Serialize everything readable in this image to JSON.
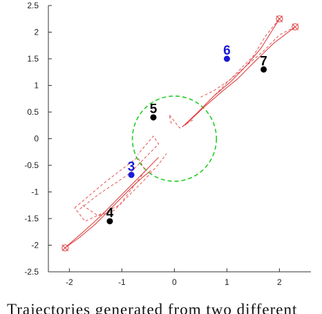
{
  "chart_data": {
    "type": "line",
    "title": "",
    "xlabel": "",
    "ylabel": "",
    "xlim": [
      -2.4,
      2.6
    ],
    "ylim": [
      -2.5,
      2.5
    ],
    "x_ticks": [
      -2,
      -1,
      0,
      1,
      2
    ],
    "x_tick_labels": [
      "-2",
      "-1",
      "0",
      "1",
      "2"
    ],
    "y_ticks": [
      2.5,
      2,
      1.5,
      1,
      0.5,
      0,
      -0.5,
      -1,
      -1.5,
      -2,
      -2.5
    ],
    "y_tick_labels": [
      "2.5",
      "2",
      "1.5",
      "1",
      "0.5",
      "0",
      "-0.5",
      "-1",
      "-1.5",
      "-2",
      "-2.5"
    ],
    "grid": false,
    "colors": {
      "trajectory": "#e04040",
      "circle": "#22cc22",
      "point_blue": "#1a1ad6",
      "point_black": "#000000",
      "axis": "#333333"
    },
    "circle": {
      "center": [
        0,
        0
      ],
      "radius": 0.8,
      "style": "dashed"
    },
    "points": [
      {
        "label": "3",
        "x": -0.82,
        "y": -0.68,
        "color": "blue"
      },
      {
        "label": "4",
        "x": -1.23,
        "y": -1.55,
        "color": "black"
      },
      {
        "label": "5",
        "x": -0.4,
        "y": 0.4,
        "color": "black"
      },
      {
        "label": "6",
        "x": 1.0,
        "y": 1.5,
        "color": "blue"
      },
      {
        "label": "7",
        "x": 1.7,
        "y": 1.3,
        "color": "black"
      }
    ],
    "markers": [
      {
        "x": -2.08,
        "y": -2.05
      },
      {
        "x": 2.0,
        "y": 2.25
      },
      {
        "x": 2.3,
        "y": 2.1
      }
    ],
    "series": [
      {
        "style": "solid",
        "x": [
          -2.08,
          -1.8,
          -1.5,
          -1.2,
          -1.0,
          -0.8,
          -0.6,
          -0.45
        ],
        "y": [
          -2.05,
          -1.85,
          -1.6,
          -1.3,
          -1.1,
          -0.9,
          -0.72,
          -0.6
        ]
      },
      {
        "style": "solid",
        "x": [
          -2.05,
          -1.7,
          -1.4,
          -1.15,
          -0.95,
          -0.75,
          -0.55,
          -0.3
        ],
        "y": [
          -2.02,
          -1.72,
          -1.45,
          -1.2,
          -1.0,
          -0.8,
          -0.6,
          -0.35
        ]
      },
      {
        "style": "solid",
        "x": [
          0.15,
          0.45,
          0.75,
          1.05,
          1.35,
          1.65,
          2.0
        ],
        "y": [
          0.22,
          0.5,
          0.8,
          1.05,
          1.35,
          1.7,
          2.25
        ]
      },
      {
        "style": "solid",
        "x": [
          0.2,
          0.55,
          0.9,
          1.2,
          1.5,
          1.9,
          2.3
        ],
        "y": [
          0.25,
          0.58,
          0.88,
          1.12,
          1.42,
          1.8,
          2.1
        ]
      },
      {
        "style": "dashed",
        "x": [
          -1.8,
          -1.45,
          -1.1,
          -0.85,
          -0.65,
          -0.45,
          -0.3,
          -0.4,
          -0.7
        ],
        "y": [
          -1.32,
          -1.05,
          -0.82,
          -0.65,
          -0.45,
          -0.25,
          -0.1,
          0.05,
          -0.3
        ]
      },
      {
        "style": "dashed",
        "x": [
          -1.75,
          -1.45,
          -1.15,
          -0.85,
          -0.55,
          -0.3,
          -0.15
        ],
        "y": [
          -1.25,
          -1.45,
          -1.35,
          -1.05,
          -0.75,
          -0.48,
          -0.28
        ]
      },
      {
        "style": "dashed",
        "x": [
          0.35,
          0.1,
          -0.1,
          -0.05
        ],
        "y": [
          0.35,
          0.2,
          0.45,
          0.25
        ]
      },
      {
        "style": "dashed",
        "x": [
          0.5,
          0.75,
          1.05,
          1.35,
          1.7,
          2.0,
          2.3
        ],
        "y": [
          0.78,
          0.9,
          1.1,
          1.35,
          1.65,
          1.95,
          2.1
        ]
      },
      {
        "style": "dashed",
        "x": [
          0.45,
          0.8,
          1.15,
          1.5,
          1.75,
          2.0
        ],
        "y": [
          0.5,
          0.85,
          1.2,
          1.55,
          1.95,
          2.25
        ]
      },
      {
        "style": "dashed",
        "x": [
          -1.9,
          -1.3,
          -0.7,
          -0.55,
          -1.05,
          -1.7,
          -1.9
        ],
        "y": [
          -1.3,
          -0.8,
          -0.35,
          -0.6,
          -1.25,
          -1.55,
          -1.3
        ]
      }
    ]
  },
  "caption": "Trajectories generated from two different"
}
